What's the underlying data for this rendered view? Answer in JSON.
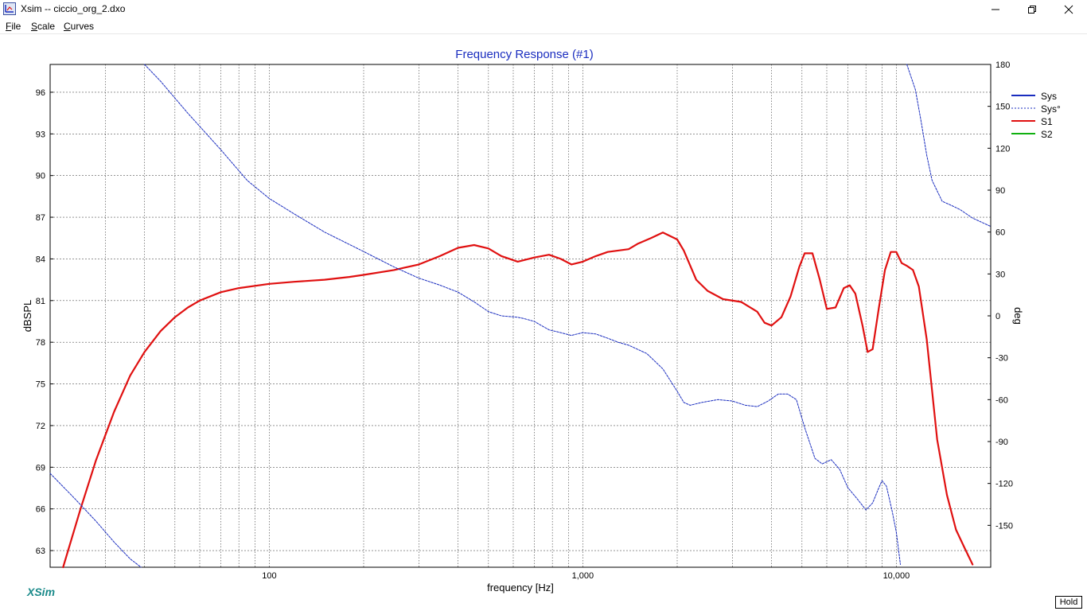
{
  "window": {
    "title": "Xsim -- ciccio_org_2.dxo",
    "controls": [
      "minimize",
      "maximize",
      "close"
    ]
  },
  "menu": {
    "items": [
      {
        "accel": "F",
        "rest": "ile"
      },
      {
        "accel": "S",
        "rest": "cale"
      },
      {
        "accel": "C",
        "rest": "urves"
      }
    ]
  },
  "brand": "XSim",
  "hold_label": "Hold",
  "chart_data": {
    "type": "line",
    "title": "Frequency Response (#1)",
    "xlabel": "frequency [Hz]",
    "ylabel_left": "dBSPL",
    "ylabel_right": "deg",
    "x_scale": "log",
    "xlim": [
      20,
      20000
    ],
    "ylim_left": [
      61.8,
      98.0
    ],
    "ylim_right": [
      -180,
      180
    ],
    "x_tick_labels": [
      {
        "x": 100,
        "label": "100"
      },
      {
        "x": 1000,
        "label": "1,000"
      },
      {
        "x": 10000,
        "label": "10,000"
      }
    ],
    "x_gridlines": [
      30,
      40,
      50,
      60,
      70,
      80,
      90,
      100,
      200,
      300,
      400,
      500,
      600,
      700,
      800,
      900,
      1000,
      2000,
      3000,
      4000,
      5000,
      6000,
      7000,
      8000,
      9000,
      10000
    ],
    "y_left_ticks": [
      63,
      66,
      69,
      72,
      75,
      78,
      81,
      84,
      87,
      90,
      93,
      96
    ],
    "y_right_ticks": [
      -150,
      -120,
      -90,
      -60,
      -30,
      0,
      30,
      60,
      90,
      120,
      150,
      180
    ],
    "grid": true,
    "legend_position": "top-right",
    "legend": [
      {
        "name": "Sys",
        "color": "#1a2dbf",
        "style": "solid"
      },
      {
        "name": "Sys°",
        "color": "#1a2dbf",
        "style": "dashed"
      },
      {
        "name": "S1",
        "color": "#e01010",
        "style": "solid"
      },
      {
        "name": "S2",
        "color": "#10b010",
        "style": "solid"
      }
    ],
    "series": [
      {
        "name": "S1",
        "axis": "left",
        "color": "#e01010",
        "points": [
          [
            22,
            61.8
          ],
          [
            25,
            66
          ],
          [
            28,
            69.5
          ],
          [
            32,
            73
          ],
          [
            36,
            75.6
          ],
          [
            40,
            77.3
          ],
          [
            45,
            78.8
          ],
          [
            50,
            79.8
          ],
          [
            55,
            80.5
          ],
          [
            60,
            81
          ],
          [
            70,
            81.6
          ],
          [
            80,
            81.9
          ],
          [
            100,
            82.2
          ],
          [
            120,
            82.35
          ],
          [
            150,
            82.5
          ],
          [
            180,
            82.7
          ],
          [
            200,
            82.85
          ],
          [
            250,
            83.2
          ],
          [
            300,
            83.6
          ],
          [
            350,
            84.2
          ],
          [
            400,
            84.8
          ],
          [
            450,
            85
          ],
          [
            500,
            84.75
          ],
          [
            550,
            84.2
          ],
          [
            620,
            83.8
          ],
          [
            700,
            84.1
          ],
          [
            780,
            84.3
          ],
          [
            850,
            84
          ],
          [
            920,
            83.6
          ],
          [
            1000,
            83.8
          ],
          [
            1100,
            84.2
          ],
          [
            1200,
            84.5
          ],
          [
            1400,
            84.7
          ],
          [
            1500,
            85.1
          ],
          [
            1650,
            85.5
          ],
          [
            1800,
            85.9
          ],
          [
            2000,
            85.4
          ],
          [
            2100,
            84.6
          ],
          [
            2300,
            82.5
          ],
          [
            2500,
            81.7
          ],
          [
            2800,
            81.1
          ],
          [
            3200,
            80.9
          ],
          [
            3600,
            80.2
          ],
          [
            3800,
            79.4
          ],
          [
            4000,
            79.2
          ],
          [
            4300,
            79.8
          ],
          [
            4600,
            81.3
          ],
          [
            4900,
            83.4
          ],
          [
            5100,
            84.4
          ],
          [
            5400,
            84.4
          ],
          [
            5700,
            82.5
          ],
          [
            6000,
            80.4
          ],
          [
            6400,
            80.5
          ],
          [
            6800,
            81.9
          ],
          [
            7100,
            82.1
          ],
          [
            7400,
            81.5
          ],
          [
            7800,
            79.2
          ],
          [
            8100,
            77.3
          ],
          [
            8400,
            77.5
          ],
          [
            8800,
            80.5
          ],
          [
            9200,
            83.2
          ],
          [
            9600,
            84.5
          ],
          [
            10000,
            84.5
          ],
          [
            10400,
            83.7
          ],
          [
            10800,
            83.5
          ],
          [
            11300,
            83.2
          ],
          [
            11800,
            82
          ],
          [
            12500,
            78.2
          ],
          [
            13500,
            71
          ],
          [
            14500,
            67
          ],
          [
            15500,
            64.5
          ],
          [
            16500,
            63.2
          ],
          [
            17500,
            62
          ]
        ]
      },
      {
        "name": "Sys°",
        "axis": "right",
        "color": "#1a2dbf",
        "points": [
          [
            20,
            -112.8
          ],
          [
            24,
            -131
          ],
          [
            28,
            -147
          ],
          [
            32,
            -162
          ],
          [
            36,
            -174
          ],
          [
            39,
            -180
          ],
          null,
          [
            40,
            180
          ],
          [
            45,
            168
          ],
          [
            55,
            145
          ],
          [
            70,
            119
          ],
          [
            85,
            97
          ],
          [
            100,
            84
          ],
          [
            120,
            73
          ],
          [
            150,
            60
          ],
          [
            200,
            46
          ],
          [
            250,
            35
          ],
          [
            300,
            27
          ],
          [
            350,
            22
          ],
          [
            400,
            17
          ],
          [
            450,
            10
          ],
          [
            500,
            3
          ],
          [
            550,
            0
          ],
          [
            620,
            -1
          ],
          [
            650,
            -2
          ],
          [
            700,
            -4
          ],
          [
            780,
            -10
          ],
          [
            850,
            -12
          ],
          [
            920,
            -14
          ],
          [
            1000,
            -12
          ],
          [
            1100,
            -13
          ],
          [
            1200,
            -16
          ],
          [
            1300,
            -19
          ],
          [
            1400,
            -21
          ],
          [
            1600,
            -27
          ],
          [
            1800,
            -38
          ],
          [
            2000,
            -54
          ],
          [
            2100,
            -62
          ],
          [
            2200,
            -64
          ],
          [
            2400,
            -62
          ],
          [
            2700,
            -60
          ],
          [
            3000,
            -61
          ],
          [
            3300,
            -64
          ],
          [
            3600,
            -65
          ],
          [
            3900,
            -61
          ],
          [
            4200,
            -56
          ],
          [
            4500,
            -56
          ],
          [
            4800,
            -60
          ],
          [
            5100,
            -80
          ],
          [
            5500,
            -102
          ],
          [
            5800,
            -106
          ],
          [
            6200,
            -103
          ],
          [
            6600,
            -110
          ],
          [
            7000,
            -123
          ],
          [
            7500,
            -131
          ],
          [
            8000,
            -139
          ],
          [
            8400,
            -134
          ],
          [
            8800,
            -123
          ],
          [
            9000,
            -118
          ],
          [
            9300,
            -122
          ],
          [
            9700,
            -140
          ],
          [
            10000,
            -155
          ],
          [
            10300,
            -178
          ],
          null,
          [
            10800,
            180
          ],
          [
            11500,
            162
          ],
          [
            12000,
            139
          ],
          [
            12500,
            115
          ],
          [
            13000,
            97
          ],
          [
            14000,
            82
          ],
          [
            15000,
            79
          ],
          [
            16000,
            76
          ],
          [
            17500,
            70
          ],
          [
            20000,
            64
          ]
        ]
      }
    ]
  }
}
